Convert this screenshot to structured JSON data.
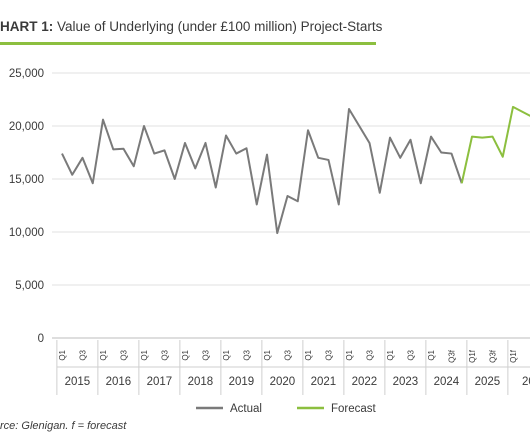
{
  "title": {
    "prefix": "HART 1:",
    "text": "Value of Underlying (under £100 million) Project-Starts"
  },
  "source": "rce: Glenigan.  f = forecast",
  "colors": {
    "actual": "#7a7a7a",
    "forecast": "#8cbf3f",
    "accent": "#8cbf3f"
  },
  "chart_data": {
    "type": "line",
    "ylim": [
      0,
      25000
    ],
    "yticks": [
      "0",
      "5,000",
      "10,000",
      "15,000",
      "20,000",
      "25,000"
    ],
    "grid": true,
    "legend_position": "bottom",
    "quarter_labels": [
      "Q1",
      "Q3",
      "Q1",
      "Q3",
      "Q1",
      "Q3",
      "Q1",
      "Q3",
      "Q1",
      "Q3",
      "Q1",
      "Q3",
      "Q1",
      "Q3",
      "Q1",
      "Q3",
      "Q1",
      "Q3",
      "Q1",
      "Q3f",
      "Q1f",
      "Q3f",
      "Q1f",
      "Q3f"
    ],
    "years": [
      "2015",
      "2016",
      "2017",
      "2018",
      "2019",
      "2020",
      "2021",
      "2022",
      "2023",
      "2024",
      "2025",
      "20"
    ],
    "series": [
      {
        "name": "Actual",
        "values": [
          17400,
          15400,
          17000,
          14600,
          20600,
          17800,
          17850,
          16200,
          20000,
          17400,
          17700,
          15000,
          18400,
          16000,
          18400,
          14200,
          19100,
          17400,
          17900,
          12600,
          17300,
          9900,
          13400,
          12900,
          19600,
          17000,
          16800,
          12600,
          21600,
          20000,
          18400,
          13700,
          18900,
          17000,
          18700,
          14600,
          19000,
          17500,
          17400,
          14600
        ]
      },
      {
        "name": "Forecast",
        "start_index": 39,
        "values": [
          14600,
          19000,
          18900,
          19000,
          17100,
          21800,
          21300,
          20800
        ]
      }
    ]
  }
}
